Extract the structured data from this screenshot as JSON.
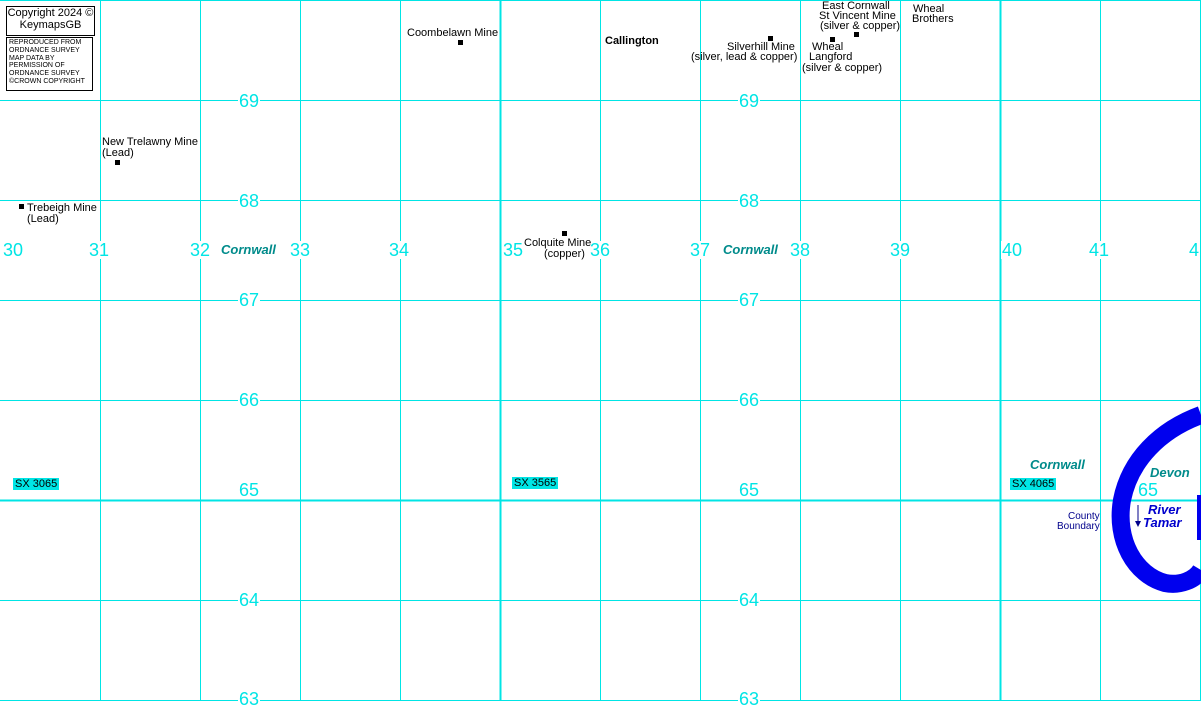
{
  "copyright": {
    "line1": "Copyright 2024 ©",
    "line2": "KeymapsGB"
  },
  "reproduced": [
    "REPRODUCED FROM",
    "ORDNANCE SURVEY",
    "MAP DATA BY",
    "PERMISSION OF",
    "ORDNANCE SURVEY",
    "©CROWN COPYRIGHT"
  ],
  "eastings": [
    "30",
    "31",
    "32",
    "33",
    "34",
    "35",
    "36",
    "37",
    "38",
    "39",
    "40",
    "41",
    "4"
  ],
  "northings_col1": [
    "69",
    "68",
    "67",
    "66",
    "65",
    "64",
    "63"
  ],
  "northings_col2": [
    "69",
    "68",
    "67",
    "66",
    "65",
    "64",
    "63"
  ],
  "northing_extra": "65",
  "counties": {
    "cornwall_1": "Cornwall",
    "cornwall_2": "Cornwall",
    "cornwall_3": "Cornwall",
    "devon": "Devon"
  },
  "grid_refs": [
    "SX 3065",
    "SX 3565",
    "SX 4065"
  ],
  "places": {
    "coombelawn": "Coombelawn Mine",
    "callington": "Callington",
    "silverhill_1": "Silverhill Mine",
    "silverhill_2": "(silver, lead & copper)",
    "east_cornwall_1": "East Cornwall",
    "east_cornwall_2": "St Vincent Mine",
    "east_cornwall_3": "(silver & copper)",
    "wheal_brothers_1": "Wheal",
    "wheal_brothers_2": "Brothers",
    "wheal_langford_1": "Wheal",
    "wheal_langford_2": "Langford",
    "wheal_langford_3": "(silver & copper)",
    "new_trelawny_1": "New Trelawny Mine",
    "new_trelawny_2": "(Lead)",
    "trebeigh_1": "Trebeigh Mine",
    "trebeigh_2": "(Lead)",
    "colquite_1": "Colquite Mine",
    "colquite_2": "(copper)"
  },
  "river": {
    "line1": "River",
    "line2": "Tamar"
  },
  "boundary": {
    "line1": "County",
    "line2": "Boundary"
  },
  "colors": {
    "grid": "#00e5e5",
    "river": "#0000ee",
    "county": "#008b8b",
    "label_bg": "#00e5e5"
  }
}
